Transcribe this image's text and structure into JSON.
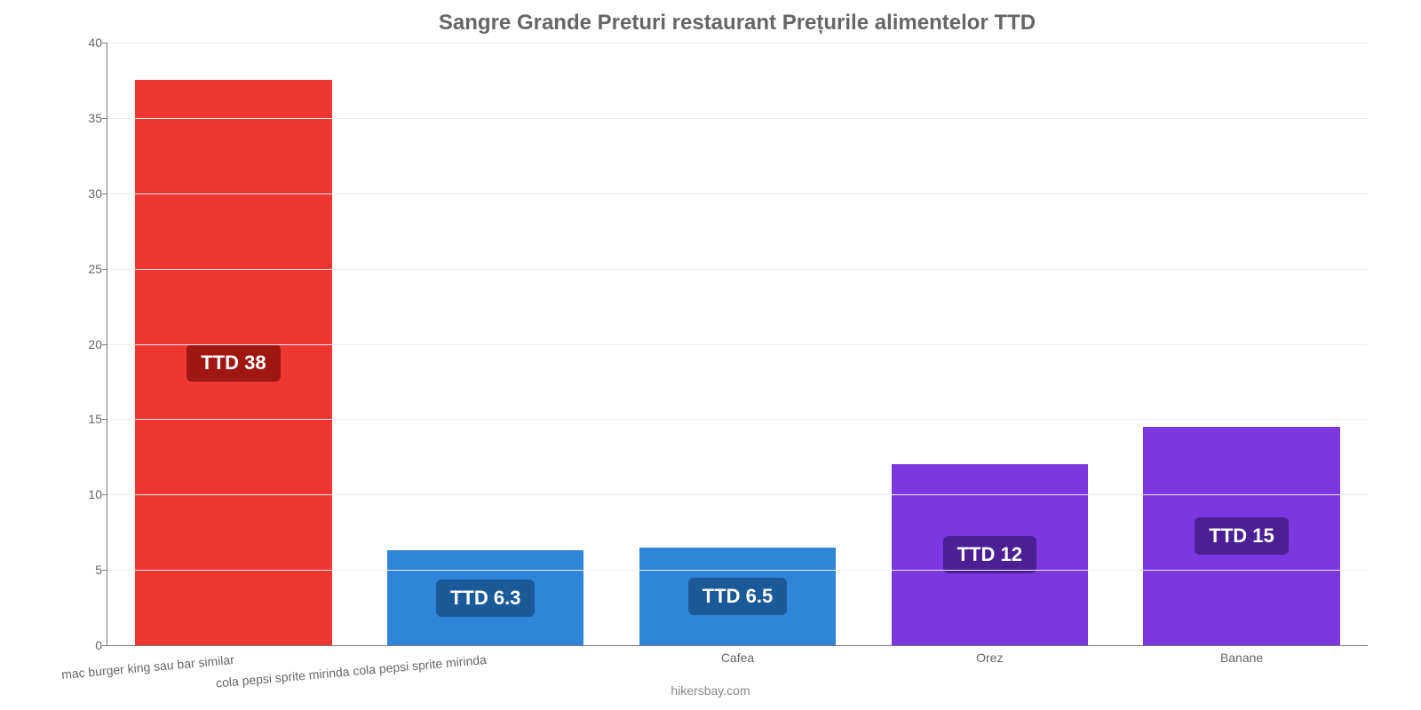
{
  "chart": {
    "type": "bar",
    "title": "Sangre Grande Preturi restaurant Prețurile alimentelor TTD",
    "title_fontsize": 24,
    "title_color": "#666666",
    "background_color": "#ffffff",
    "grid_color": "#eeeeee",
    "axis_color": "#777777",
    "tick_label_color": "#666666",
    "tick_label_fontsize": 14,
    "ylim": [
      0,
      40
    ],
    "ytick_step": 5,
    "yticks": [
      0,
      5,
      10,
      15,
      20,
      25,
      30,
      35,
      40
    ],
    "bar_width_ratio": 0.78,
    "categories": [
      "mac burger king sau bar similar",
      "cola pepsi sprite mirinda cola pepsi sprite mirinda",
      "Cafea",
      "Orez",
      "Banane"
    ],
    "rotated_category_indexes": [
      0,
      1
    ],
    "values": [
      37.5,
      6.3,
      6.5,
      12,
      14.5
    ],
    "value_labels": [
      "TTD 38",
      "TTD 6.3",
      "TTD 6.5",
      "TTD 12",
      "TTD 15"
    ],
    "bar_colors": [
      "#ee3730",
      "#2f86d8",
      "#2f86d8",
      "#7c38e0",
      "#7c38e0"
    ],
    "badge_colors": [
      "#a01712",
      "#1a5a99",
      "#1a5a99",
      "#4d1f94",
      "#4d1f94"
    ],
    "badge_fontsize": 22,
    "badge_text_color": "#ffffff",
    "attribution": "hikersbay.com",
    "attribution_color": "#888888",
    "attribution_fontsize": 14
  }
}
